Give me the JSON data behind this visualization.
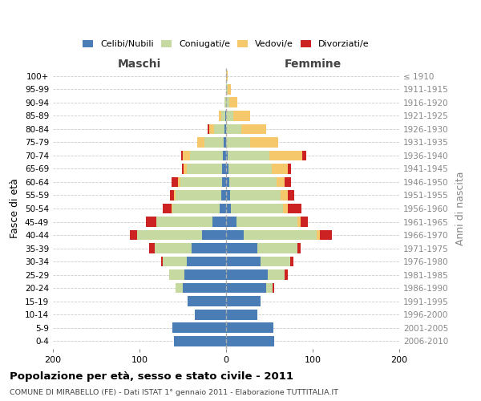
{
  "age_groups": [
    "0-4",
    "5-9",
    "10-14",
    "15-19",
    "20-24",
    "25-29",
    "30-34",
    "35-39",
    "40-44",
    "45-49",
    "50-54",
    "55-59",
    "60-64",
    "65-69",
    "70-74",
    "75-79",
    "80-84",
    "85-89",
    "90-94",
    "95-99",
    "100+"
  ],
  "birth_years": [
    "2006-2010",
    "2001-2005",
    "1996-2000",
    "1991-1995",
    "1986-1990",
    "1981-1985",
    "1976-1980",
    "1971-1975",
    "1966-1970",
    "1961-1965",
    "1956-1960",
    "1951-1955",
    "1946-1950",
    "1941-1945",
    "1936-1940",
    "1931-1935",
    "1926-1930",
    "1921-1925",
    "1916-1920",
    "1911-1915",
    "≤ 1910"
  ],
  "colors": {
    "celibi": "#4a7db5",
    "coniugati": "#c5d9a0",
    "vedovi": "#f5c96b",
    "divorziati": "#cc2222"
  },
  "males": {
    "celibi": [
      60,
      62,
      36,
      44,
      50,
      48,
      45,
      40,
      28,
      16,
      7,
      6,
      5,
      5,
      4,
      3,
      2,
      1,
      0,
      0,
      0
    ],
    "coniugati": [
      0,
      0,
      0,
      0,
      8,
      18,
      28,
      42,
      75,
      65,
      55,
      52,
      48,
      40,
      38,
      22,
      12,
      5,
      2,
      0,
      0
    ],
    "vedovi": [
      0,
      0,
      0,
      0,
      0,
      0,
      0,
      0,
      0,
      0,
      1,
      2,
      3,
      4,
      8,
      8,
      5,
      2,
      0,
      0,
      0
    ],
    "divorziati": [
      0,
      0,
      0,
      0,
      0,
      0,
      2,
      7,
      8,
      12,
      10,
      5,
      7,
      2,
      2,
      0,
      2,
      0,
      0,
      0,
      0
    ]
  },
  "females": {
    "nubili": [
      56,
      55,
      36,
      40,
      46,
      48,
      40,
      36,
      20,
      12,
      6,
      5,
      4,
      3,
      2,
      0,
      0,
      0,
      0,
      0,
      0
    ],
    "coniugate": [
      0,
      0,
      0,
      0,
      8,
      20,
      34,
      46,
      85,
      70,
      60,
      58,
      54,
      50,
      48,
      28,
      18,
      8,
      4,
      2,
      0
    ],
    "vedove": [
      0,
      0,
      0,
      0,
      0,
      0,
      0,
      0,
      3,
      4,
      5,
      8,
      10,
      18,
      38,
      32,
      28,
      20,
      9,
      4,
      2
    ],
    "divorziate": [
      0,
      0,
      0,
      0,
      2,
      3,
      4,
      4,
      14,
      8,
      16,
      8,
      7,
      4,
      5,
      0,
      0,
      0,
      0,
      0,
      0
    ]
  },
  "xlim": [
    -200,
    200
  ],
  "xticks": [
    -200,
    -100,
    0,
    100,
    200
  ],
  "xticklabels": [
    "200",
    "100",
    "0",
    "100",
    "200"
  ],
  "title": "Popolazione per età, sesso e stato civile - 2011",
  "subtitle": "COMUNE DI MIRABELLO (FE) - Dati ISTAT 1° gennaio 2011 - Elaborazione TUTTITALIA.IT",
  "ylabel_left": "Fasce di età",
  "ylabel_right": "Anni di nascita",
  "label_maschi": "Maschi",
  "label_femmine": "Femmine",
  "legend_labels": [
    "Celibi/Nubili",
    "Coniugati/e",
    "Vedovi/e",
    "Divorziati/e"
  ]
}
